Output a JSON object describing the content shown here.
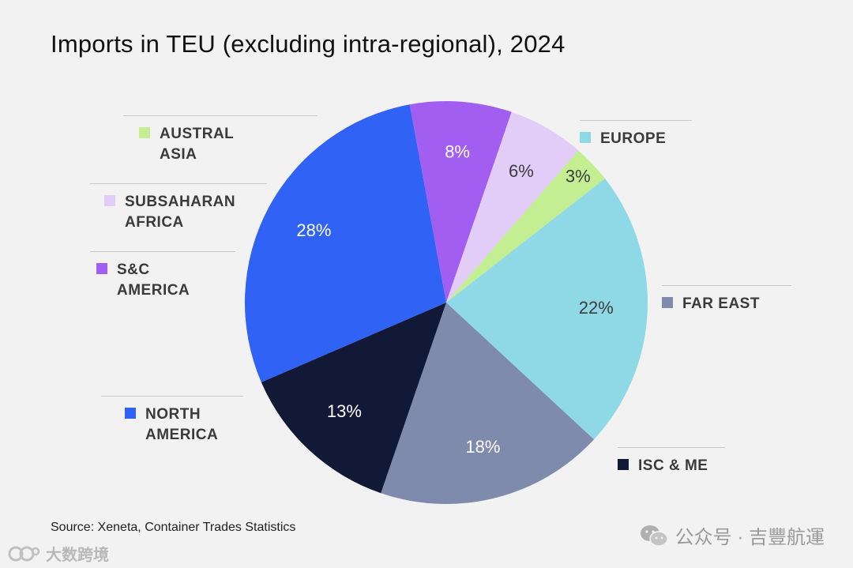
{
  "chart_data": {
    "type": "pie",
    "title": "Imports in TEU (excluding intra-regional), 2024",
    "start_angle_deg": -38,
    "slices": [
      {
        "key": "europe",
        "label": "EUROPE",
        "value": 22,
        "text": "22%",
        "color": "#8fd8e6",
        "text_color": "#3c3c3c"
      },
      {
        "key": "far-east",
        "label": "FAR EAST",
        "value": 18,
        "text": "18%",
        "color": "#7f8bac",
        "text_color": "#ffffff"
      },
      {
        "key": "isc-me",
        "label": "ISC & ME",
        "value": 13,
        "text": "13%",
        "color": "#111936",
        "text_color": "#ffffff"
      },
      {
        "key": "north-america",
        "label": "NORTH AMERICA",
        "value": 28,
        "text": "28%",
        "color": "#2f62f5",
        "text_color": "#ffffff"
      },
      {
        "key": "sc-america",
        "label": "S&C AMERICA",
        "value": 8,
        "text": "8%",
        "color": "#a25ef0",
        "text_color": "#ffffff"
      },
      {
        "key": "subsaharan-africa",
        "label": "SUBSAHARAN AFRICA",
        "value": 6,
        "text": "6%",
        "color": "#e2ccf8",
        "text_color": "#3c3c3c"
      },
      {
        "key": "austral-asia",
        "label": "AUSTRAL ASIA",
        "value": 3,
        "text": "3%",
        "color": "#c3ee92",
        "text_color": "#3c3c3c"
      }
    ],
    "legend": [
      {
        "key": "europe",
        "line1": "EUROPE",
        "line2": ""
      },
      {
        "key": "far-east",
        "line1": "FAR EAST",
        "line2": ""
      },
      {
        "key": "isc-me",
        "line1": "ISC & ME",
        "line2": ""
      },
      {
        "key": "north-america",
        "line1": "NORTH",
        "line2": "AMERICA"
      },
      {
        "key": "sc-america",
        "line1": "S&C",
        "line2": "AMERICA"
      },
      {
        "key": "subsaharan-africa",
        "line1": "SUBSAHARAN",
        "line2": "AFRICA"
      },
      {
        "key": "austral-asia",
        "line1": "AUSTRAL",
        "line2": "ASIA"
      }
    ]
  },
  "source": "Source: Xeneta, Container Trades Statistics",
  "watermark": "公众号 · 吉豐航運",
  "watermark2": "大数跨境"
}
